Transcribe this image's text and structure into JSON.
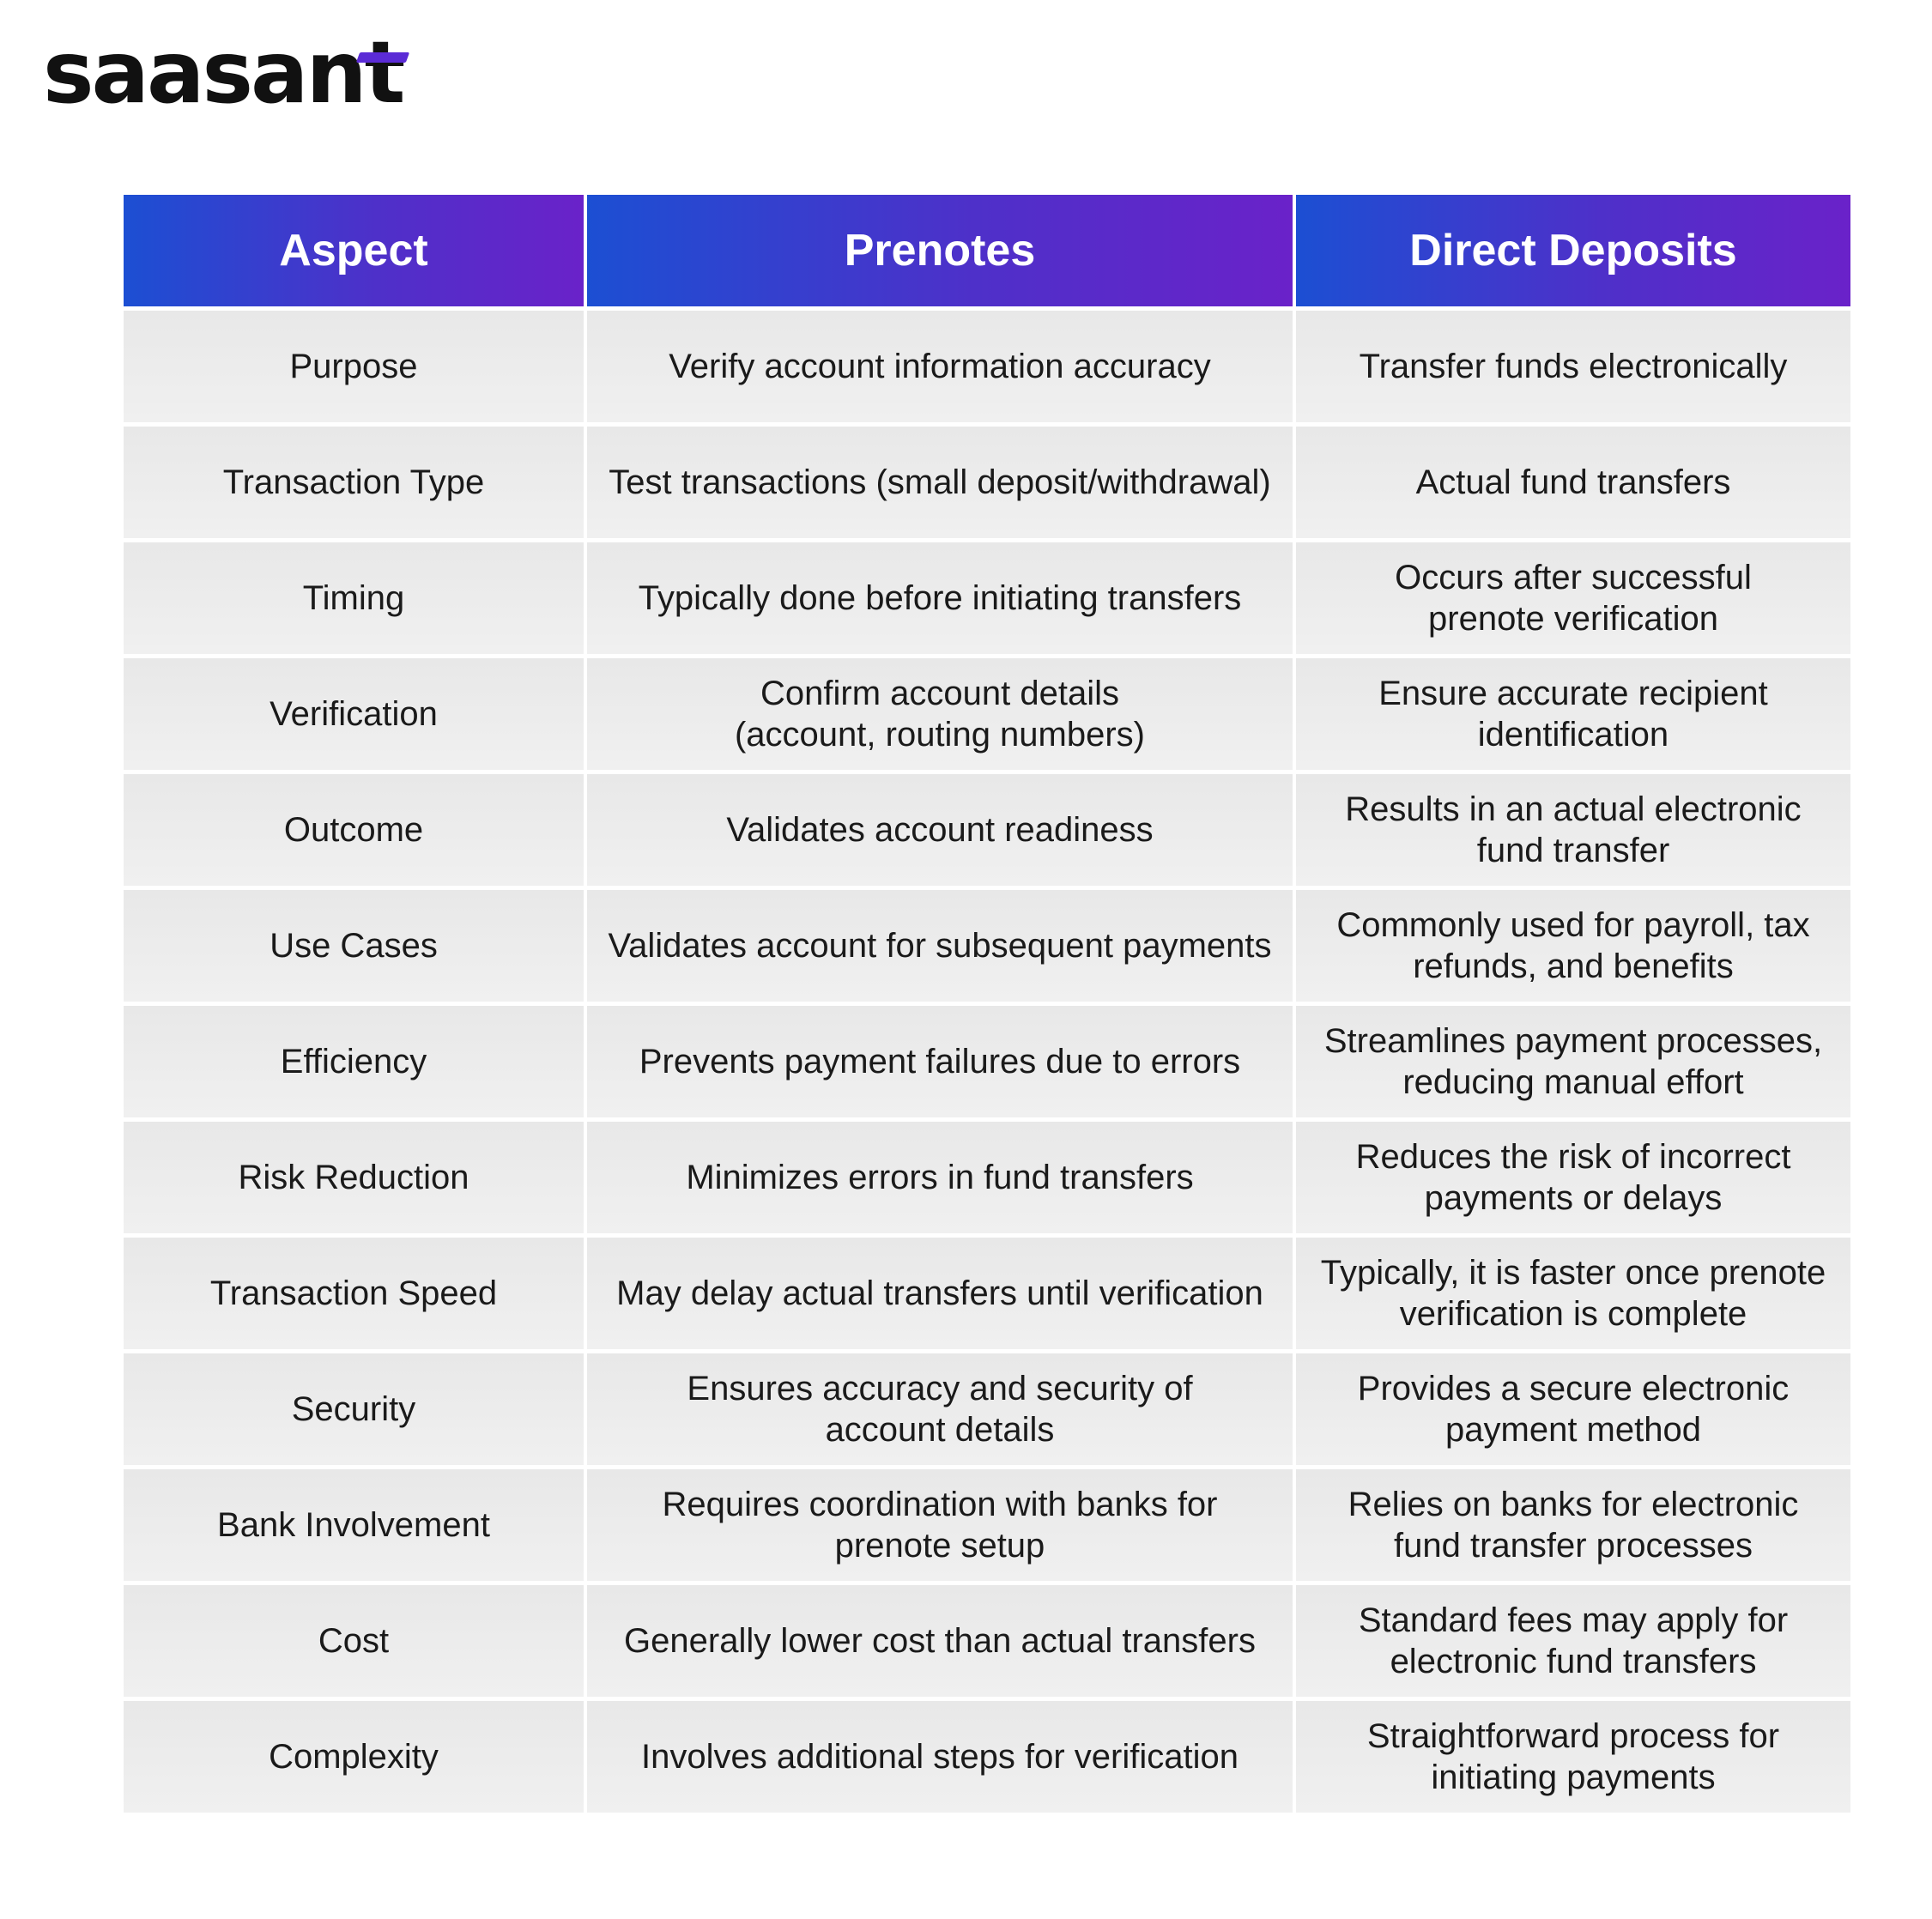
{
  "brand": {
    "logo_text": "saasant",
    "accent_color": "#5b2bd6"
  },
  "table": {
    "headers": [
      "Aspect",
      "Prenotes",
      "Direct Deposits"
    ],
    "header_gradient": [
      "#1c4fd3",
      "#6a22c9"
    ],
    "rows": [
      {
        "aspect": "Purpose",
        "prenotes": "Verify account information accuracy",
        "direct_deposits": "Transfer funds electronically"
      },
      {
        "aspect": "Transaction Type",
        "prenotes": "Test transactions (small deposit/withdrawal)",
        "direct_deposits": "Actual fund transfers"
      },
      {
        "aspect": "Timing",
        "prenotes": "Typically done before initiating transfers",
        "direct_deposits": "Occurs after successful\nprenote verification"
      },
      {
        "aspect": "Verification",
        "prenotes": "Confirm account details\n(account, routing numbers)",
        "direct_deposits": "Ensure accurate recipient\nidentification"
      },
      {
        "aspect": "Outcome",
        "prenotes": "Validates account readiness",
        "direct_deposits": "Results in an actual electronic\nfund transfer"
      },
      {
        "aspect": "Use Cases",
        "prenotes": "Validates account for subsequent payments",
        "direct_deposits": "Commonly used for payroll, tax\nrefunds, and benefits"
      },
      {
        "aspect": "Efficiency",
        "prenotes": "Prevents payment failures due to errors",
        "direct_deposits": "Streamlines payment processes,\nreducing manual effort"
      },
      {
        "aspect": "Risk Reduction",
        "prenotes": "Minimizes errors in fund transfers",
        "direct_deposits": "Reduces the risk of incorrect\npayments or delays"
      },
      {
        "aspect": "Transaction Speed",
        "prenotes": "May delay actual transfers until verification",
        "direct_deposits": "Typically, it is faster once prenote\nverification is complete"
      },
      {
        "aspect": "Security",
        "prenotes": "Ensures accuracy and security of\naccount details",
        "direct_deposits": "Provides a secure electronic\npayment method"
      },
      {
        "aspect": "Bank Involvement",
        "prenotes": "Requires coordination with banks for\nprenote setup",
        "direct_deposits": "Relies on banks for electronic\nfund transfer processes"
      },
      {
        "aspect": "Cost",
        "prenotes": "Generally lower cost than actual transfers",
        "direct_deposits": "Standard fees may apply for\nelectronic fund transfers"
      },
      {
        "aspect": "Complexity",
        "prenotes": "Involves additional steps for verification",
        "direct_deposits": "Straightforward process for\ninitiating payments"
      }
    ]
  }
}
